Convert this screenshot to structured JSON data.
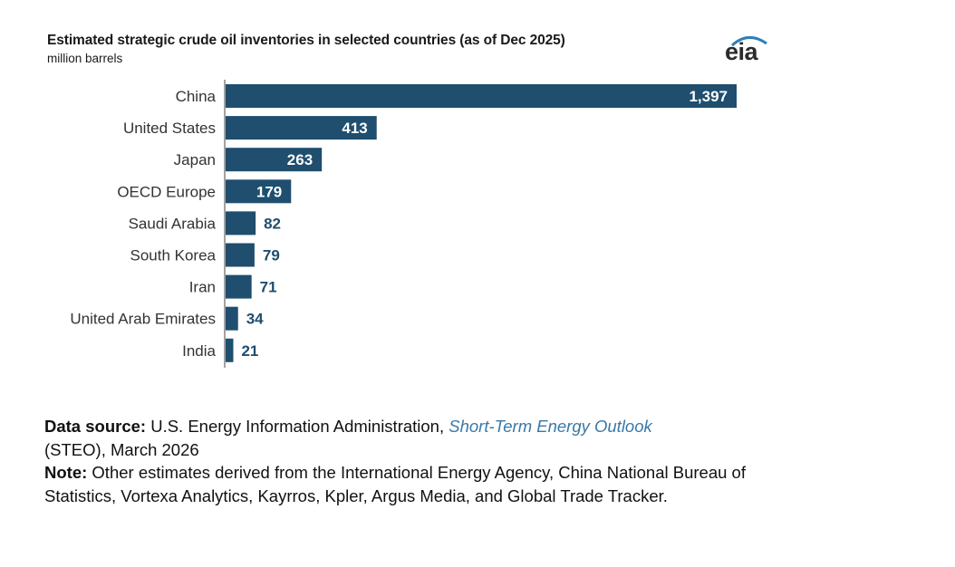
{
  "chart_data": {
    "type": "bar",
    "orientation": "horizontal",
    "title": "Estimated strategic crude oil inventories in selected countries (as of Dec 2025)",
    "subtitle": "million barrels",
    "categories": [
      "China",
      "United States",
      "Japan",
      "OECD Europe",
      "Saudi Arabia",
      "South Korea",
      "Iran",
      "United Arab Emirates",
      "India"
    ],
    "values": [
      1397,
      413,
      263,
      179,
      82,
      79,
      71,
      34,
      21
    ],
    "value_labels": [
      "1,397",
      "413",
      "263",
      "179",
      "82",
      "79",
      "71",
      "34",
      "21"
    ],
    "bar_color": "#1f4e6e",
    "label_inside_color": "#ffffff",
    "label_outside_color": "#1f4e6e",
    "xlim": [
      0,
      1397
    ]
  },
  "logo": {
    "text": "eia"
  },
  "footnote": {
    "source_label": "Data source:",
    "source_text": "U.S. Energy Information Administration,",
    "source_link": "Short-Term Energy Outlook",
    "source_tail": "(STEO), March 2026",
    "note_label": "Note:",
    "note_text": "Other estimates derived from the International Energy Agency, China National Bureau of Statistics, Vortexa Analytics, Kayrros, Kpler, Argus Media, and Global Trade Tracker."
  }
}
